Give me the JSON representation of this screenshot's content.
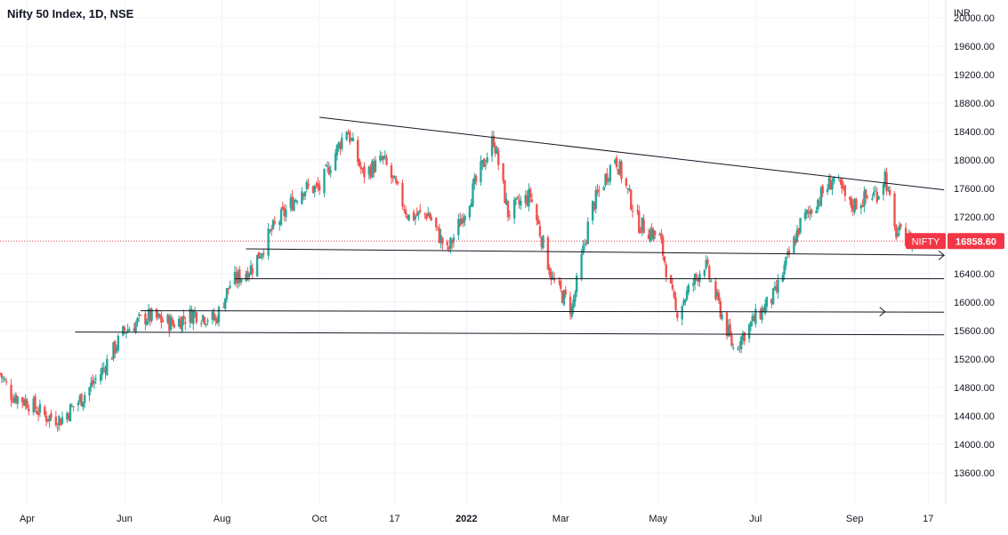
{
  "header": {
    "title": "Nifty 50 Index, 1D, NSE"
  },
  "colors": {
    "up": "#26a69a",
    "down": "#ef5350",
    "trendline": "#131722",
    "grid": "#f0f3fa",
    "axis_text": "#131722",
    "last_price_bg": "#f23645"
  },
  "chart_data": {
    "type": "candlestick",
    "title": "Nifty 50 Index, 1D, NSE",
    "currency_label": "INR",
    "y_ticks": [
      13600,
      14000,
      14400,
      14800,
      15200,
      15600,
      16000,
      16400,
      16800,
      17200,
      17600,
      18000,
      18400,
      18800,
      19200,
      19600,
      20000
    ],
    "y_tick_labels": [
      "13600.00",
      "14000.00",
      "14400.00",
      "14800.00",
      "15200.00",
      "15600.00",
      "16000.00",
      "16400.00",
      "16800.00",
      "17200.00",
      "17600.00",
      "18000.00",
      "18400.00",
      "18800.00",
      "19200.00",
      "19600.00",
      "20000.00"
    ],
    "ylim": [
      13150,
      20250
    ],
    "x_ticks": [
      "Apr",
      "Jun",
      "Aug",
      "Oct",
      "17",
      "2022",
      "Mar",
      "May",
      "Jul",
      "Sep",
      "17"
    ],
    "x_tick_bold": [
      false,
      false,
      false,
      false,
      false,
      true,
      false,
      false,
      false,
      false,
      false
    ],
    "xlim": [
      "2021-03-15",
      "2022-10-28"
    ],
    "x_tick_dates": [
      "2021-04-01",
      "2021-06-01",
      "2021-08-01",
      "2021-10-01",
      "2021-11-17",
      "2022-01-01",
      "2022-03-01",
      "2022-05-01",
      "2022-07-01",
      "2022-09-01",
      "2022-10-17"
    ],
    "last_price": {
      "symbol": "NIFTY",
      "value": 16858.6,
      "label": "16858.60"
    },
    "anchors": [
      [
        "2021-03-15",
        15000
      ],
      [
        "2021-03-22",
        14700
      ],
      [
        "2021-04-01",
        14600
      ],
      [
        "2021-04-12",
        14400
      ],
      [
        "2021-04-22",
        14350
      ],
      [
        "2021-05-05",
        14650
      ],
      [
        "2021-05-17",
        15000
      ],
      [
        "2021-06-01",
        15600
      ],
      [
        "2021-06-15",
        15800
      ],
      [
        "2021-07-01",
        15700
      ],
      [
        "2021-07-15",
        15850
      ],
      [
        "2021-07-28",
        15750
      ],
      [
        "2021-08-06",
        16250
      ],
      [
        "2021-08-20",
        16500
      ],
      [
        "2021-09-01",
        17000
      ],
      [
        "2021-09-20",
        17600
      ],
      [
        "2021-10-01",
        17600
      ],
      [
        "2021-10-18",
        18450
      ],
      [
        "2021-10-28",
        17800
      ],
      [
        "2021-11-10",
        18000
      ],
      [
        "2021-11-26",
        17200
      ],
      [
        "2021-12-08",
        17250
      ],
      [
        "2021-12-20",
        16700
      ],
      [
        "2022-01-01",
        17350
      ],
      [
        "2022-01-18",
        18300
      ],
      [
        "2022-01-27",
        17250
      ],
      [
        "2022-02-10",
        17500
      ],
      [
        "2022-02-24",
        16300
      ],
      [
        "2022-03-08",
        15900
      ],
      [
        "2022-03-20",
        17300
      ],
      [
        "2022-04-04",
        18050
      ],
      [
        "2022-04-19",
        17100
      ],
      [
        "2022-05-02",
        16900
      ],
      [
        "2022-05-12",
        15850
      ],
      [
        "2022-05-30",
        16550
      ],
      [
        "2022-06-17",
        15350
      ],
      [
        "2022-06-30",
        15750
      ],
      [
        "2022-07-13",
        16100
      ],
      [
        "2022-07-29",
        17100
      ],
      [
        "2022-08-19",
        17750
      ],
      [
        "2022-08-29",
        17350
      ],
      [
        "2022-09-16",
        17550
      ],
      [
        "2022-09-20",
        17800
      ],
      [
        "2022-09-26",
        17000
      ],
      [
        "2022-10-07",
        16858
      ]
    ],
    "trendlines": [
      {
        "from": [
          "2021-10-01",
          18600
        ],
        "to": [
          "2022-10-27",
          17580
        ],
        "arrow": false
      },
      {
        "from": [
          "2021-08-16",
          16750
        ],
        "to": [
          "2022-10-27",
          16660
        ],
        "arrow": true
      },
      {
        "from": [
          "2021-08-09",
          16330
        ],
        "to": [
          "2022-10-27",
          16330
        ],
        "arrow": false
      },
      {
        "from": [
          "2021-06-11",
          15880
        ],
        "to": [
          "2022-10-27",
          15860
        ],
        "arrow": true,
        "arrow_at": [
          "2022-09-20",
          15865
        ]
      },
      {
        "from": [
          "2021-05-01",
          15580
        ],
        "to": [
          "2022-10-27",
          15540
        ],
        "arrow": false
      }
    ]
  }
}
